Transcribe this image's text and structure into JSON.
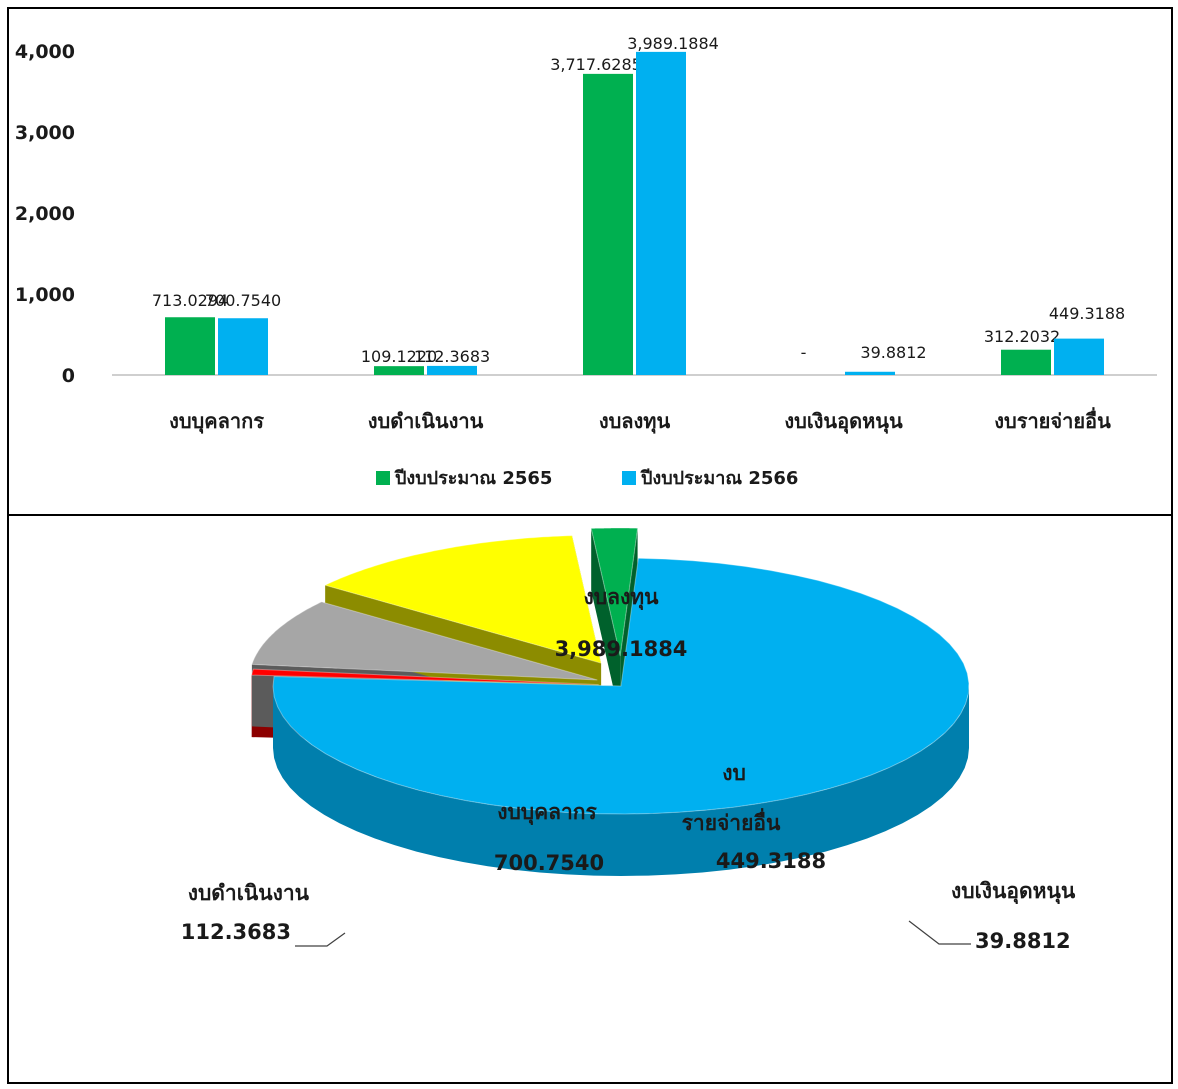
{
  "chart_data": [
    {
      "type": "bar",
      "categories": [
        "งบบุคลากร",
        "งบดำเนินงาน",
        "งบลงทุน",
        "งบเงินอุดหนุน",
        "งบรายจ่ายอื่น"
      ],
      "series": [
        {
          "name": "ปีงบประมาณ 2565",
          "color": "#00b050",
          "values": [
            713.0294,
            109.122,
            3717.6285,
            0,
            312.2032
          ],
          "labels": [
            "713.0294",
            "109.1220",
            "3,717.6285",
            "-",
            "312.2032"
          ]
        },
        {
          "name": "ปีงบประมาณ 2566",
          "color": "#00b0f0",
          "values": [
            700.754,
            112.3683,
            3989.1884,
            39.8812,
            449.3188
          ],
          "labels": [
            "700.7540",
            "112.3683",
            "3,989.1884",
            "39.8812",
            "449.3188"
          ]
        }
      ],
      "ylim": [
        0,
        4000
      ],
      "yticks": [
        0,
        1000,
        2000,
        3000,
        4000
      ],
      "ytick_labels": [
        "0",
        "1,000",
        "2,000",
        "3,000",
        "4,000"
      ],
      "grid": false,
      "legend_position": "bottom"
    },
    {
      "type": "pie",
      "style": "3d-exploded",
      "slices": [
        {
          "label": "งบลงทุน",
          "value": 3989.1884,
          "value_label": "3,989.1884",
          "color": "#00b0f0"
        },
        {
          "label": "งบเงินอุดหนุน",
          "value": 39.8812,
          "value_label": "39.8812",
          "color": "#ff0000"
        },
        {
          "label": "งบรายจ่ายอื่น",
          "label_lines": [
            "งบ",
            "รายจ่ายอื่น"
          ],
          "value": 449.3188,
          "value_label": "449.3188",
          "color": "#a6a6a6"
        },
        {
          "label": "งบบุคลากร",
          "value": 700.754,
          "value_label": "700.7540",
          "color": "#ffff00"
        },
        {
          "label": "งบดำเนินงาน",
          "value": 112.3683,
          "value_label": "112.3683",
          "color": "#00b050"
        }
      ]
    }
  ]
}
